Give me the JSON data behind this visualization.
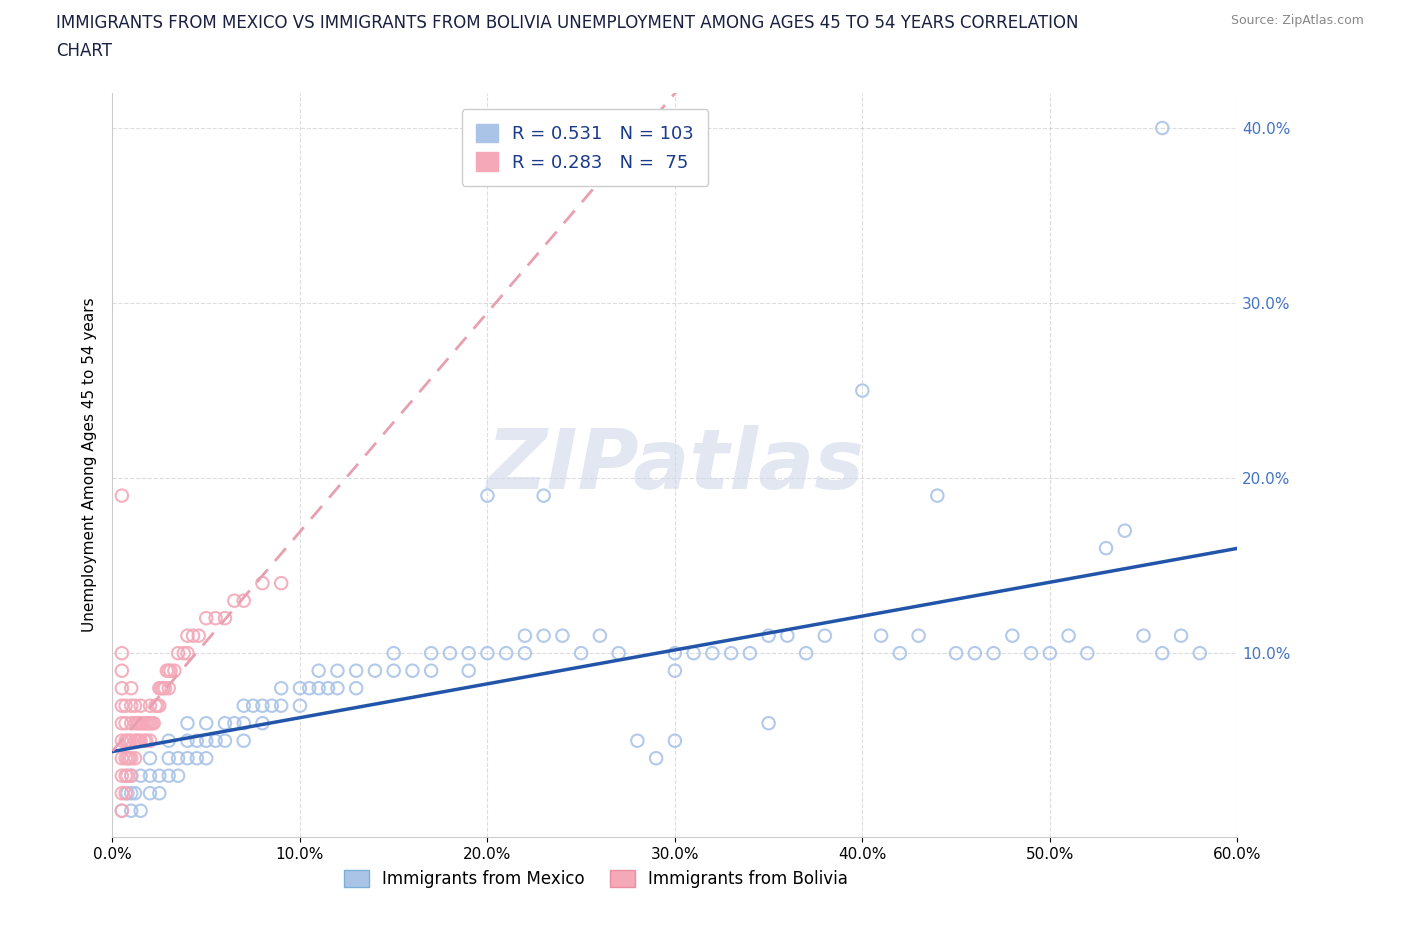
{
  "title_line1": "IMMIGRANTS FROM MEXICO VS IMMIGRANTS FROM BOLIVIA UNEMPLOYMENT AMONG AGES 45 TO 54 YEARS CORRELATION",
  "title_line2": "CHART",
  "source_text": "Source: ZipAtlas.com",
  "ylabel": "Unemployment Among Ages 45 to 54 years",
  "xlabel_mexico": "Immigrants from Mexico",
  "xlabel_bolivia": "Immigrants from Bolivia",
  "mexico_color": "#aac4e8",
  "bolivia_color": "#f4a8b8",
  "trend_line_color_mexico": "#2255aa",
  "trend_line_color_bolivia": "#e8a0b0",
  "R_mexico": 0.531,
  "N_mexico": 103,
  "R_bolivia": 0.283,
  "N_bolivia": 75,
  "xlim": [
    0.0,
    0.6
  ],
  "ylim": [
    -0.005,
    0.42
  ],
  "xticks": [
    0.0,
    0.1,
    0.2,
    0.3,
    0.4,
    0.5,
    0.6
  ],
  "yticks": [
    0.1,
    0.2,
    0.3,
    0.4
  ],
  "ytick_labels": [
    "10.0%",
    "20.0%",
    "30.0%",
    "40.0%"
  ],
  "xtick_labels": [
    "0.0%",
    "10.0%",
    "20.0%",
    "30.0%",
    "40.0%",
    "50.0%",
    "60.0%"
  ],
  "watermark": "ZIPatlas",
  "legend_text_color": "#1a3a8a",
  "mexico_scatter": [
    [
      0.005,
      0.01
    ],
    [
      0.008,
      0.02
    ],
    [
      0.01,
      0.02
    ],
    [
      0.01,
      0.03
    ],
    [
      0.01,
      0.01
    ],
    [
      0.012,
      0.02
    ],
    [
      0.015,
      0.03
    ],
    [
      0.015,
      0.01
    ],
    [
      0.02,
      0.03
    ],
    [
      0.02,
      0.02
    ],
    [
      0.02,
      0.04
    ],
    [
      0.025,
      0.03
    ],
    [
      0.025,
      0.02
    ],
    [
      0.03,
      0.04
    ],
    [
      0.03,
      0.03
    ],
    [
      0.03,
      0.05
    ],
    [
      0.035,
      0.04
    ],
    [
      0.035,
      0.03
    ],
    [
      0.04,
      0.05
    ],
    [
      0.04,
      0.04
    ],
    [
      0.04,
      0.06
    ],
    [
      0.045,
      0.05
    ],
    [
      0.045,
      0.04
    ],
    [
      0.05,
      0.05
    ],
    [
      0.05,
      0.06
    ],
    [
      0.05,
      0.04
    ],
    [
      0.055,
      0.05
    ],
    [
      0.06,
      0.06
    ],
    [
      0.06,
      0.05
    ],
    [
      0.065,
      0.06
    ],
    [
      0.07,
      0.07
    ],
    [
      0.07,
      0.05
    ],
    [
      0.07,
      0.06
    ],
    [
      0.075,
      0.07
    ],
    [
      0.08,
      0.07
    ],
    [
      0.08,
      0.06
    ],
    [
      0.085,
      0.07
    ],
    [
      0.09,
      0.08
    ],
    [
      0.09,
      0.07
    ],
    [
      0.1,
      0.08
    ],
    [
      0.1,
      0.07
    ],
    [
      0.105,
      0.08
    ],
    [
      0.11,
      0.09
    ],
    [
      0.11,
      0.08
    ],
    [
      0.115,
      0.08
    ],
    [
      0.12,
      0.09
    ],
    [
      0.12,
      0.08
    ],
    [
      0.13,
      0.09
    ],
    [
      0.13,
      0.08
    ],
    [
      0.14,
      0.09
    ],
    [
      0.15,
      0.09
    ],
    [
      0.15,
      0.1
    ],
    [
      0.16,
      0.09
    ],
    [
      0.17,
      0.1
    ],
    [
      0.17,
      0.09
    ],
    [
      0.18,
      0.1
    ],
    [
      0.19,
      0.1
    ],
    [
      0.19,
      0.09
    ],
    [
      0.2,
      0.19
    ],
    [
      0.2,
      0.1
    ],
    [
      0.21,
      0.1
    ],
    [
      0.22,
      0.11
    ],
    [
      0.22,
      0.1
    ],
    [
      0.23,
      0.19
    ],
    [
      0.23,
      0.11
    ],
    [
      0.24,
      0.11
    ],
    [
      0.25,
      0.1
    ],
    [
      0.26,
      0.11
    ],
    [
      0.27,
      0.1
    ],
    [
      0.28,
      0.05
    ],
    [
      0.29,
      0.04
    ],
    [
      0.3,
      0.1
    ],
    [
      0.3,
      0.09
    ],
    [
      0.31,
      0.1
    ],
    [
      0.32,
      0.1
    ],
    [
      0.33,
      0.1
    ],
    [
      0.34,
      0.1
    ],
    [
      0.35,
      0.11
    ],
    [
      0.36,
      0.11
    ],
    [
      0.37,
      0.1
    ],
    [
      0.38,
      0.11
    ],
    [
      0.4,
      0.25
    ],
    [
      0.41,
      0.11
    ],
    [
      0.42,
      0.1
    ],
    [
      0.43,
      0.11
    ],
    [
      0.44,
      0.19
    ],
    [
      0.45,
      0.1
    ],
    [
      0.46,
      0.1
    ],
    [
      0.47,
      0.1
    ],
    [
      0.48,
      0.11
    ],
    [
      0.49,
      0.1
    ],
    [
      0.5,
      0.1
    ],
    [
      0.51,
      0.11
    ],
    [
      0.52,
      0.1
    ],
    [
      0.53,
      0.16
    ],
    [
      0.54,
      0.17
    ],
    [
      0.55,
      0.11
    ],
    [
      0.56,
      0.1
    ],
    [
      0.57,
      0.11
    ],
    [
      0.58,
      0.1
    ],
    [
      0.3,
      0.05
    ],
    [
      0.35,
      0.06
    ],
    [
      0.56,
      0.4
    ]
  ],
  "bolivia_scatter": [
    [
      0.005,
      0.01
    ],
    [
      0.005,
      0.02
    ],
    [
      0.005,
      0.03
    ],
    [
      0.005,
      0.04
    ],
    [
      0.005,
      0.05
    ],
    [
      0.005,
      0.06
    ],
    [
      0.005,
      0.07
    ],
    [
      0.005,
      0.08
    ],
    [
      0.005,
      0.09
    ],
    [
      0.005,
      0.1
    ],
    [
      0.005,
      0.19
    ],
    [
      0.007,
      0.02
    ],
    [
      0.007,
      0.03
    ],
    [
      0.007,
      0.04
    ],
    [
      0.007,
      0.05
    ],
    [
      0.007,
      0.06
    ],
    [
      0.007,
      0.07
    ],
    [
      0.008,
      0.03
    ],
    [
      0.008,
      0.04
    ],
    [
      0.008,
      0.05
    ],
    [
      0.009,
      0.04
    ],
    [
      0.009,
      0.05
    ],
    [
      0.01,
      0.03
    ],
    [
      0.01,
      0.04
    ],
    [
      0.01,
      0.05
    ],
    [
      0.01,
      0.06
    ],
    [
      0.01,
      0.07
    ],
    [
      0.01,
      0.08
    ],
    [
      0.012,
      0.04
    ],
    [
      0.012,
      0.05
    ],
    [
      0.012,
      0.06
    ],
    [
      0.012,
      0.07
    ],
    [
      0.013,
      0.05
    ],
    [
      0.013,
      0.06
    ],
    [
      0.014,
      0.05
    ],
    [
      0.014,
      0.06
    ],
    [
      0.015,
      0.05
    ],
    [
      0.015,
      0.06
    ],
    [
      0.015,
      0.07
    ],
    [
      0.016,
      0.06
    ],
    [
      0.017,
      0.05
    ],
    [
      0.017,
      0.06
    ],
    [
      0.018,
      0.05
    ],
    [
      0.018,
      0.06
    ],
    [
      0.019,
      0.06
    ],
    [
      0.02,
      0.05
    ],
    [
      0.02,
      0.06
    ],
    [
      0.02,
      0.07
    ],
    [
      0.021,
      0.06
    ],
    [
      0.022,
      0.06
    ],
    [
      0.023,
      0.07
    ],
    [
      0.024,
      0.07
    ],
    [
      0.025,
      0.07
    ],
    [
      0.025,
      0.08
    ],
    [
      0.026,
      0.08
    ],
    [
      0.027,
      0.08
    ],
    [
      0.028,
      0.08
    ],
    [
      0.029,
      0.09
    ],
    [
      0.03,
      0.08
    ],
    [
      0.03,
      0.09
    ],
    [
      0.031,
      0.09
    ],
    [
      0.033,
      0.09
    ],
    [
      0.035,
      0.1
    ],
    [
      0.038,
      0.1
    ],
    [
      0.04,
      0.1
    ],
    [
      0.04,
      0.11
    ],
    [
      0.043,
      0.11
    ],
    [
      0.046,
      0.11
    ],
    [
      0.05,
      0.12
    ],
    [
      0.055,
      0.12
    ],
    [
      0.06,
      0.12
    ],
    [
      0.065,
      0.13
    ],
    [
      0.07,
      0.13
    ],
    [
      0.08,
      0.14
    ],
    [
      0.09,
      0.14
    ]
  ]
}
